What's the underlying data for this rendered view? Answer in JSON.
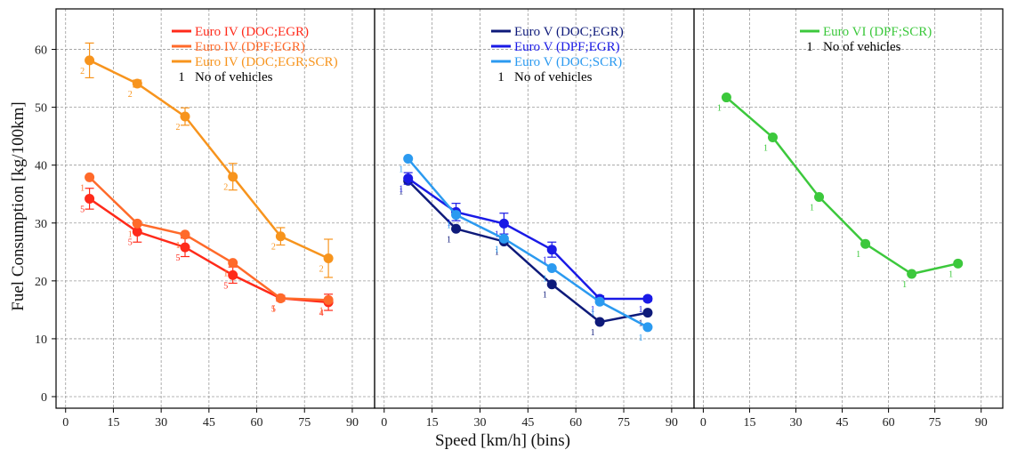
{
  "chart_data": {
    "type": "line",
    "xlabel": "Speed [km/h] (bins)",
    "ylabel": "Fuel Consumption [kg/100km]",
    "xlim": [
      -3,
      97
    ],
    "ylim": [
      -2,
      67
    ],
    "x_ticks": [
      0,
      15,
      30,
      45,
      60,
      75,
      90
    ],
    "y_ticks": [
      0,
      10,
      20,
      30,
      40,
      50,
      60
    ],
    "grid": true,
    "legend_placement": "top-right",
    "no_of_vehicles_marker": "1",
    "no_of_vehicles_label": "No of vehicles",
    "panels": [
      {
        "name": "Euro IV",
        "legend_placement": "top-right",
        "show_vehicles_key": true,
        "series": [
          {
            "name": "Euro IV (DOC;EGR)",
            "color": "#FF2A1A",
            "x": [
              7.5,
              22.5,
              37.5,
              52.5,
              67.5,
              82.5
            ],
            "y": [
              34.2,
              28.5,
              25.8,
              21.0,
              17.0,
              16.3
            ],
            "err": [
              1.8,
              1.8,
              1.6,
              1.4,
              0.5,
              1.4
            ],
            "counts": [
              "5",
              "5",
              "5",
              "5",
              "5",
              "4"
            ]
          },
          {
            "name": "Euro IV (DPF;EGR)",
            "color": "#FF6A2A",
            "x": [
              7.5,
              22.5,
              37.5,
              52.5,
              67.5,
              82.5
            ],
            "y": [
              37.9,
              29.9,
              28.0,
              23.1,
              17.0,
              16.7
            ],
            "err": [
              0,
              0,
              0,
              0,
              0,
              0
            ],
            "counts": [
              "1",
              "1",
              "1",
              "1",
              "1",
              "1"
            ]
          },
          {
            "name": "Euro IV (DOC;EGR;SCR)",
            "color": "#F7941D",
            "x": [
              7.5,
              22.5,
              37.5,
              52.5,
              67.5,
              82.5
            ],
            "y": [
              58.1,
              54.1,
              48.4,
              38.0,
              27.7,
              23.9
            ],
            "err": [
              3.0,
              0.6,
              1.5,
              2.3,
              1.5,
              3.3
            ],
            "counts": [
              "2",
              "2",
              "2",
              "2",
              "2",
              "2"
            ]
          }
        ]
      },
      {
        "name": "Euro V",
        "legend_placement": "top-right",
        "show_vehicles_key": true,
        "series": [
          {
            "name": "Euro V (DOC;EGR)",
            "color": "#0E1A7A",
            "x": [
              7.5,
              22.5,
              37.5,
              52.5,
              67.5,
              82.5
            ],
            "y": [
              37.3,
              29.0,
              26.8,
              19.4,
              12.9,
              14.5
            ],
            "err": [
              0,
              0,
              0,
              0,
              0,
              0
            ],
            "counts": [
              "1",
              "1",
              "1",
              "1",
              "1",
              "1"
            ]
          },
          {
            "name": "Euro V (DPF;EGR)",
            "color": "#1A1AE6",
            "x": [
              7.5,
              22.5,
              37.5,
              52.5,
              67.5,
              82.5
            ],
            "y": [
              37.7,
              31.9,
              29.9,
              25.4,
              16.9,
              16.9
            ],
            "err": [
              1.0,
              1.5,
              1.8,
              1.3,
              0.5,
              0.4
            ],
            "counts": [
              "1",
              "1",
              "1",
              "1",
              "1",
              "1"
            ]
          },
          {
            "name": "Euro V (DOC;SCR)",
            "color": "#2B9AF0",
            "x": [
              7.5,
              22.5,
              37.5,
              52.5,
              67.5,
              82.5
            ],
            "y": [
              41.1,
              31.4,
              27.3,
              22.2,
              16.4,
              12.0
            ],
            "err": [
              0,
              0,
              0,
              0,
              0,
              0
            ],
            "counts": [
              "1",
              "1",
              "1",
              "1",
              "1",
              "1"
            ]
          }
        ]
      },
      {
        "name": "Euro VI",
        "legend_placement": "top-right",
        "show_vehicles_key": true,
        "series": [
          {
            "name": "Euro VI (DPF;SCR)",
            "color": "#3CC83C",
            "x": [
              7.5,
              22.5,
              37.5,
              52.5,
              67.5,
              82.5
            ],
            "y": [
              51.7,
              44.8,
              34.5,
              26.4,
              21.2,
              23.0
            ],
            "err": [
              0,
              0,
              0,
              0,
              0,
              0
            ],
            "counts": [
              "1",
              "1",
              "1",
              "1",
              "1",
              "1"
            ]
          }
        ]
      }
    ]
  }
}
